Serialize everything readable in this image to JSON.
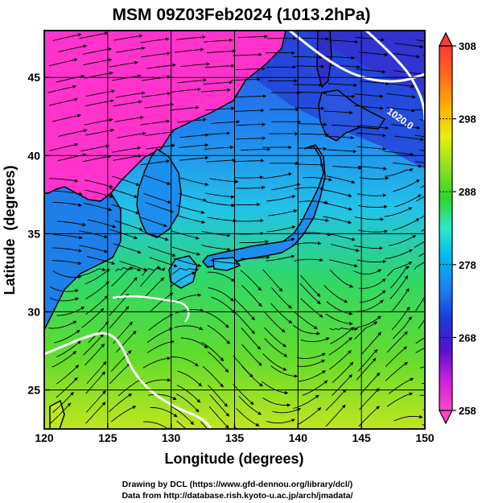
{
  "title": "MSM 09Z03Feb2024 (1013.2hPa)",
  "x_axis": {
    "label": "Longitude (degrees)",
    "range": [
      120,
      150
    ],
    "ticks": [
      "120",
      "125",
      "130",
      "135",
      "140",
      "145",
      "150"
    ]
  },
  "y_axis": {
    "label": "Latitude  (degrees)",
    "range": [
      22.5,
      48
    ],
    "ticks": [
      "25",
      "30",
      "35",
      "40",
      "45"
    ]
  },
  "colorbar": {
    "range": [
      258,
      308
    ],
    "ticks": [
      "258",
      "268",
      "278",
      "288",
      "298",
      "308"
    ],
    "colors": [
      "#ff44cc",
      "#cc22dd",
      "#5511cc",
      "#1a3ad6",
      "#1e7ff0",
      "#00b8f0",
      "#2ee8c8",
      "#2ed62a",
      "#8ee020",
      "#e8ee10",
      "#ffb000",
      "#ff6a20",
      "#ff3a30"
    ]
  },
  "isobar_label": "1020.0",
  "credits": {
    "line1": "Drawing by DCL (https://www.gfd-dennou.org/library/dcl/)",
    "line2": "Data from http://database.rish.kyoto-u.ac.jp/arch/jmadata/"
  },
  "colors": {
    "land_cold": "#ff33cc",
    "sea_cold": "#1e6fef",
    "sea_mid": "#22c7e6",
    "sea_warm": "#3fd63f",
    "sea_warmest": "#b8e624",
    "coastline": "#000000",
    "streamline": "#000000",
    "isobar": "#ffffff"
  }
}
